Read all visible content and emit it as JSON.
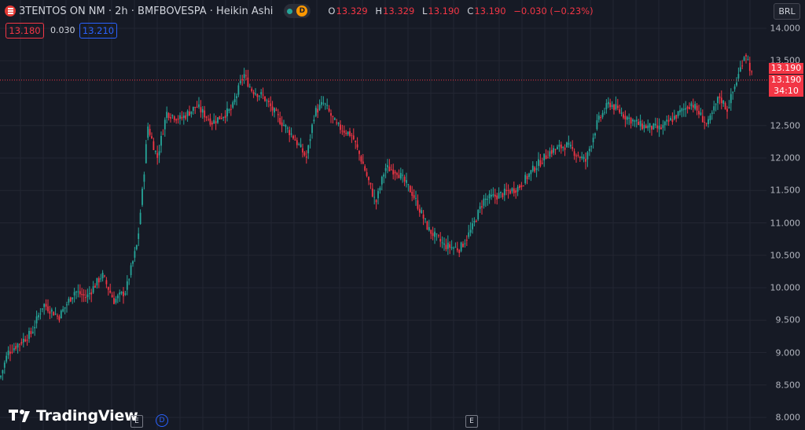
{
  "header": {
    "symbol_title": "3TENTOS ON NM · 2h · BMFBOVESPA · Heikin Ashi",
    "status_badge": "D",
    "ohlc": {
      "o_label": "O",
      "o_value": "13.329",
      "h_label": "H",
      "h_value": "13.329",
      "l_label": "L",
      "l_value": "13.190",
      "c_label": "C",
      "c_value": "13.190",
      "change": "−0.030 (−0.23%)"
    },
    "bid": "13.180",
    "spread": "0.030",
    "ask": "13.210",
    "currency": "BRL"
  },
  "price_tags": {
    "last": "13.190",
    "close": "13.190",
    "countdown": "34:10"
  },
  "event_markers": {
    "earnings_1": "E",
    "dividend": "D",
    "earnings_2": "E"
  },
  "brand": "TradingView",
  "chart_data": {
    "type": "candlestick",
    "style": "Heikin Ashi",
    "ylim": [
      8.0,
      14.0
    ],
    "y_ticks": [
      "8.000",
      "8.500",
      "9.000",
      "9.500",
      "10.000",
      "10.500",
      "11.000",
      "11.500",
      "12.000",
      "12.500",
      "13.000",
      "13.500",
      "14.000"
    ],
    "last_price": 13.19,
    "trend_anchors": [
      [
        0,
        8.6
      ],
      [
        10,
        9.0
      ],
      [
        40,
        9.3
      ],
      [
        55,
        9.75
      ],
      [
        75,
        9.55
      ],
      [
        95,
        9.95
      ],
      [
        110,
        9.85
      ],
      [
        130,
        10.2
      ],
      [
        145,
        9.8
      ],
      [
        160,
        9.95
      ],
      [
        175,
        10.7
      ],
      [
        182,
        11.6
      ],
      [
        188,
        12.5
      ],
      [
        200,
        12.0
      ],
      [
        212,
        12.7
      ],
      [
        230,
        12.6
      ],
      [
        250,
        12.8
      ],
      [
        270,
        12.55
      ],
      [
        295,
        12.75
      ],
      [
        310,
        13.3
      ],
      [
        320,
        13.05
      ],
      [
        335,
        12.95
      ],
      [
        355,
        12.6
      ],
      [
        372,
        12.35
      ],
      [
        390,
        12.0
      ],
      [
        400,
        12.7
      ],
      [
        412,
        12.85
      ],
      [
        428,
        12.5
      ],
      [
        448,
        12.35
      ],
      [
        462,
        11.9
      ],
      [
        478,
        11.3
      ],
      [
        490,
        11.85
      ],
      [
        505,
        11.8
      ],
      [
        525,
        11.45
      ],
      [
        545,
        10.9
      ],
      [
        565,
        10.65
      ],
      [
        585,
        10.6
      ],
      [
        600,
        10.9
      ],
      [
        615,
        11.35
      ],
      [
        640,
        11.45
      ],
      [
        660,
        11.55
      ],
      [
        680,
        11.85
      ],
      [
        700,
        12.1
      ],
      [
        720,
        12.2
      ],
      [
        745,
        11.95
      ],
      [
        760,
        12.55
      ],
      [
        775,
        12.85
      ],
      [
        795,
        12.65
      ],
      [
        815,
        12.5
      ],
      [
        840,
        12.45
      ],
      [
        860,
        12.65
      ],
      [
        880,
        12.85
      ],
      [
        900,
        12.5
      ],
      [
        915,
        12.95
      ],
      [
        925,
        12.75
      ],
      [
        940,
        13.3
      ],
      [
        948,
        13.65
      ],
      [
        955,
        13.35
      ],
      [
        958,
        13.19
      ]
    ]
  }
}
